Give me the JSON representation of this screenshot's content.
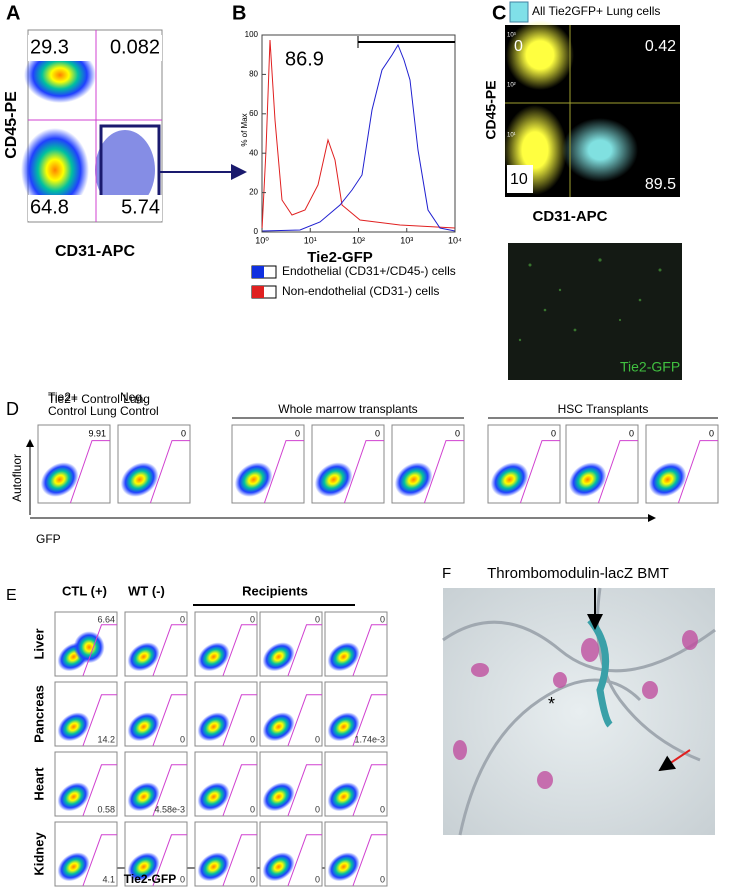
{
  "panel_a": {
    "label": "A",
    "y_label": "CD45-PE",
    "x_label": "CD31-APC",
    "quadrants": [
      "29.3",
      "0.082",
      "64.8",
      "5.74"
    ]
  },
  "panel_b": {
    "label": "B",
    "gate_value": "86.9",
    "y_label": "% of Max",
    "x_label": "Tie2-GFP",
    "yticks": [
      "0",
      "20",
      "40",
      "60",
      "80",
      "100"
    ],
    "xticks": [
      "10⁰",
      "10¹",
      "10²",
      "10³",
      "10⁴"
    ],
    "legend": [
      "Endothelial (CD31+/CD45-) cells",
      "Non-endothelial (CD31-) cells"
    ]
  },
  "panel_c": {
    "label": "C",
    "legend": "All Tie2GFP+ Lung cells",
    "y_label": "CD45-PE",
    "x_label": "CD31-APC",
    "yticks": [
      "10⁰",
      "10¹",
      "10²",
      "10³"
    ],
    "quadrants": [
      "0",
      "0.42",
      "10",
      "89.5"
    ],
    "image_label": "Tie2-GFP"
  },
  "panel_d": {
    "label": "D",
    "headers": [
      "Tie2+ Control Lung",
      "Neg. Control",
      "Whole marrow transplants",
      "HSC Transplants"
    ],
    "values": [
      "9.91",
      "0",
      "0",
      "0",
      "0",
      "0",
      "0",
      "0"
    ],
    "y_label": "Autofluor",
    "x_label": "GFP"
  },
  "panel_e": {
    "label": "E",
    "headers": [
      "CTL (+)",
      "WT (-)",
      "Recipients"
    ],
    "rows": [
      {
        "name": "Liver",
        "values": [
          "6.64",
          "0",
          "0",
          "0",
          "0"
        ]
      },
      {
        "name": "Pancreas",
        "values": [
          "14.2",
          "0",
          "0",
          "0",
          "1.74e-3"
        ]
      },
      {
        "name": "Heart",
        "values": [
          "0.58",
          "4.58e-3",
          "0",
          "0",
          "0"
        ]
      },
      {
        "name": "Kidney",
        "values": [
          "4.1",
          "0",
          "0",
          "0",
          "0"
        ]
      }
    ],
    "x_label": "Tie2-GFP"
  },
  "panel_f": {
    "label": "F",
    "title": "Thrombomodulin-lacZ BMT",
    "marker": "*"
  }
}
